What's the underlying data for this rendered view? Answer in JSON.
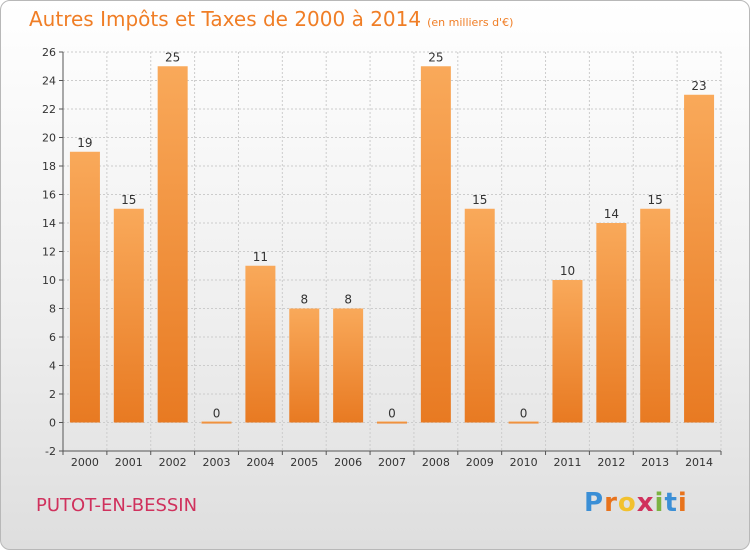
{
  "page": {
    "commune": "PUTOT-EN-BESSIN",
    "brand": "Proxiti"
  },
  "chart_data": {
    "type": "bar",
    "title": "Autres Impôts et Taxes de 2000 à 2014",
    "subtitle": "(en milliers d'€)",
    "xlabel": "",
    "ylabel": "",
    "categories": [
      "2000",
      "2001",
      "2002",
      "2003",
      "2004",
      "2005",
      "2006",
      "2007",
      "2008",
      "2009",
      "2010",
      "2011",
      "2012",
      "2013",
      "2014"
    ],
    "values": [
      19,
      15,
      25,
      0,
      11,
      8,
      8,
      0,
      25,
      15,
      0,
      10,
      14,
      15,
      23
    ],
    "ylim": [
      -2,
      26
    ],
    "yticks": [
      -2,
      0,
      2,
      4,
      6,
      8,
      10,
      12,
      14,
      16,
      18,
      20,
      22,
      24,
      26
    ],
    "grid": true,
    "legend": "none",
    "colors": {
      "bar_light": "#f9a95a",
      "bar_dark": "#e87a22",
      "title": "#f07e26",
      "commune": "#d0315d",
      "grid": "#cccccc"
    }
  }
}
